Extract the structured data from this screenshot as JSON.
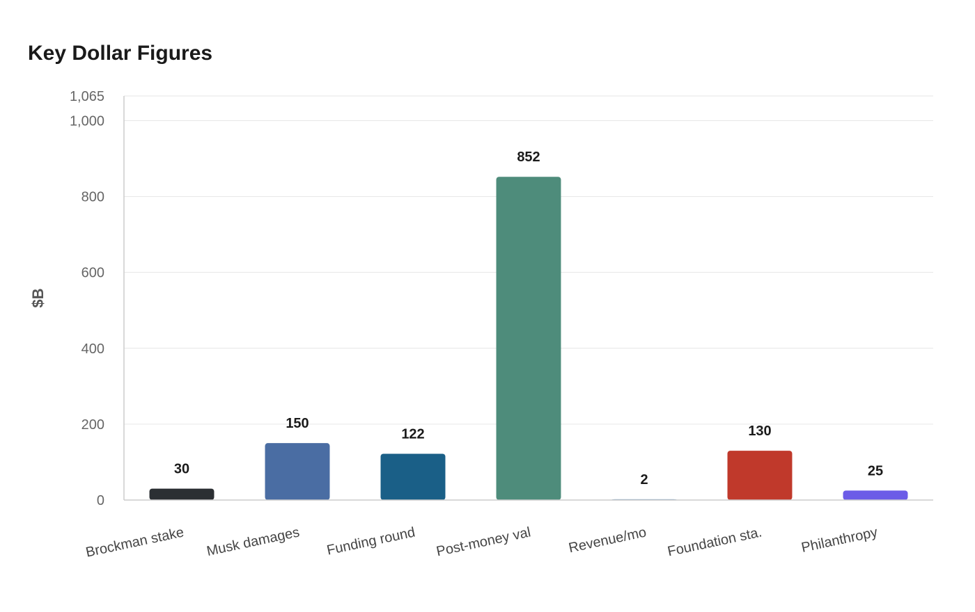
{
  "chart_data": {
    "type": "bar",
    "title": "Key Dollar Figures",
    "ylabel": "$B",
    "xlabel": "",
    "ylim": [
      0,
      1065
    ],
    "yticks": [
      0,
      200,
      400,
      600,
      800,
      1000,
      1065
    ],
    "ytick_labels": [
      "0",
      "200",
      "400",
      "600",
      "800",
      "1,000",
      "1,065"
    ],
    "grid": true,
    "categories": [
      "Brockman stake",
      "Musk damages",
      "Funding round",
      "Post-money val",
      "Revenue/mo",
      "Foundation sta.",
      "Philanthropy"
    ],
    "values": [
      30,
      150,
      122,
      852,
      2,
      130,
      25
    ],
    "value_labels": [
      "30",
      "150",
      "122",
      "852",
      "2",
      "130",
      "25"
    ],
    "colors": [
      "#2b2f33",
      "#4a6da3",
      "#1a5f87",
      "#4e8c7b",
      "#5b8fb5",
      "#c0392b",
      "#6c5ce7"
    ]
  }
}
